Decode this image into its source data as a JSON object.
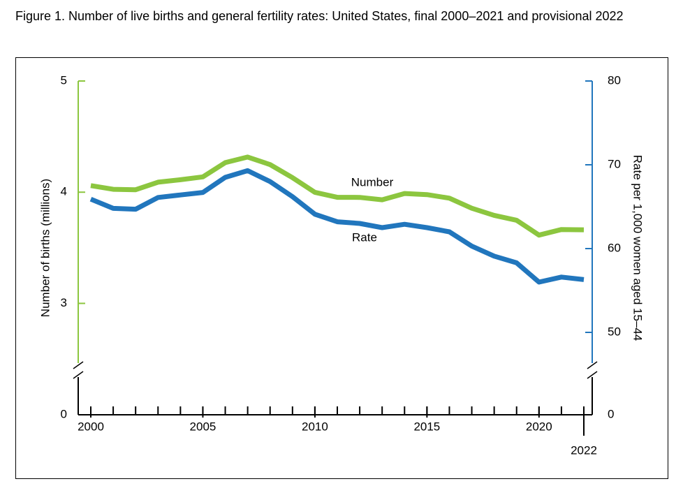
{
  "chart_data": {
    "type": "line",
    "title": "Figure 1. Number of live births and general fertility rates: United States, final 2000–2021 and provisional 2022",
    "ylabel": "Number of births (millions)",
    "y2label": "Rate per 1,000 women aged 15–44",
    "x": [
      2000,
      2001,
      2002,
      2003,
      2004,
      2005,
      2006,
      2007,
      2008,
      2009,
      2010,
      2011,
      2012,
      2013,
      2014,
      2015,
      2016,
      2017,
      2018,
      2019,
      2020,
      2021,
      2022
    ],
    "xlim": [
      2000,
      2022
    ],
    "xticks": [
      2000,
      2005,
      2010,
      2015,
      2020,
      2022
    ],
    "ylim": [
      0,
      5
    ],
    "yticks": [
      0,
      3,
      4,
      5
    ],
    "y_break": [
      0,
      2.4
    ],
    "y2lim": [
      0,
      80
    ],
    "y2ticks": [
      0,
      50,
      60,
      70,
      80
    ],
    "y2_break": [
      0,
      45.5
    ],
    "series": [
      {
        "name": "Number",
        "color": "#8cc63f",
        "axis": "y",
        "values": [
          4.059,
          4.026,
          4.022,
          4.09,
          4.112,
          4.138,
          4.266,
          4.316,
          4.248,
          4.131,
          3.999,
          3.954,
          3.953,
          3.932,
          3.988,
          3.978,
          3.946,
          3.856,
          3.792,
          3.748,
          3.614,
          3.664,
          3.662
        ]
      },
      {
        "name": "Rate",
        "color": "#2176bd",
        "axis": "y2",
        "values": [
          65.9,
          64.8,
          64.7,
          66.1,
          66.4,
          66.7,
          68.5,
          69.3,
          68.0,
          66.2,
          64.1,
          63.2,
          63.0,
          62.5,
          62.9,
          62.5,
          62.0,
          60.3,
          59.1,
          58.3,
          56.0,
          56.6,
          56.3
        ]
      }
    ]
  }
}
